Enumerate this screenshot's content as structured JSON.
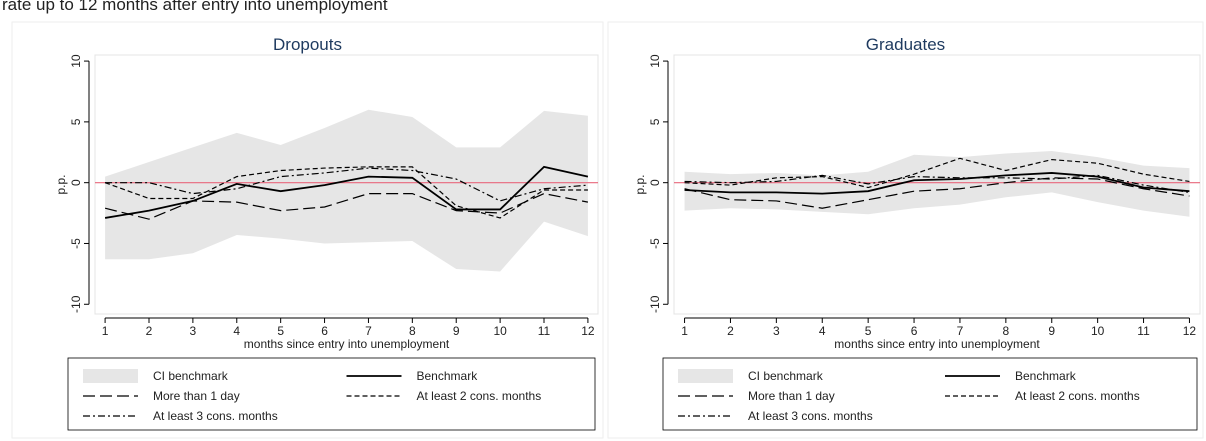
{
  "caption": "rate up to 12 months after entry into unemployment",
  "chart_data": [
    {
      "type": "line",
      "title": "Dropouts",
      "xlabel": "months since entry into unemployment",
      "ylabel": "p.p.",
      "x": [
        1,
        2,
        3,
        4,
        5,
        6,
        7,
        8,
        9,
        10,
        11,
        12
      ],
      "xticks": [
        1,
        2,
        3,
        4,
        5,
        6,
        7,
        8,
        9,
        10,
        11,
        12
      ],
      "xlim": [
        0.77,
        12.23
      ],
      "ylim": [
        -10.8,
        10.5
      ],
      "yticks": [
        -10,
        -5,
        0,
        5,
        10
      ],
      "refline": {
        "value": 0,
        "color": "#e8687c"
      },
      "band": {
        "name": "CI benchmark",
        "color": "#e6e6e6",
        "lower": [
          -6.3,
          -6.3,
          -5.8,
          -4.3,
          -4.6,
          -5.0,
          -4.9,
          -4.8,
          -7.1,
          -7.3,
          -3.2,
          -4.4
        ],
        "upper": [
          0.5,
          1.7,
          2.9,
          4.1,
          3.1,
          4.5,
          6.0,
          5.4,
          2.9,
          2.9,
          5.9,
          5.5
        ]
      },
      "series": [
        {
          "name": "Benchmark",
          "color": "#000000",
          "style": "solid",
          "values": [
            -2.9,
            -2.3,
            -1.5,
            -0.1,
            -0.7,
            -0.2,
            0.5,
            0.4,
            -2.2,
            -2.2,
            1.3,
            0.5
          ]
        },
        {
          "name": "More than 1 day",
          "color": "#000000",
          "style": "longdash",
          "values": [
            -2.1,
            -3.0,
            -1.5,
            -1.6,
            -2.3,
            -2.0,
            -0.9,
            -0.9,
            -2.3,
            -2.5,
            -0.9,
            -1.6
          ]
        },
        {
          "name": "At least 2 cons. months",
          "color": "#000000",
          "style": "dash",
          "values": [
            0,
            -1.3,
            -1.3,
            0.5,
            1.0,
            1.2,
            1.3,
            1.3,
            -1.9,
            -2.9,
            -0.6,
            -0.6
          ]
        },
        {
          "name": "At least 3 cons. months",
          "color": "#000000",
          "style": "dashdot",
          "values": [
            0,
            0,
            -0.9,
            -0.5,
            0.5,
            0.8,
            1.2,
            1.0,
            0.3,
            -1.5,
            -0.5,
            -0.2
          ]
        }
      ]
    },
    {
      "type": "line",
      "title": "Graduates",
      "xlabel": "months since entry into unemployment",
      "ylabel": "p.p.",
      "x": [
        1,
        2,
        3,
        4,
        5,
        6,
        7,
        8,
        9,
        10,
        11,
        12
      ],
      "xticks": [
        1,
        2,
        3,
        4,
        5,
        6,
        7,
        8,
        9,
        10,
        11,
        12
      ],
      "xlim": [
        0.77,
        12.23
      ],
      "ylim": [
        -10.8,
        10.5
      ],
      "yticks": [
        -10,
        -5,
        0,
        5,
        10
      ],
      "refline": {
        "value": 0,
        "color": "#e8687c"
      },
      "band": {
        "name": "CI benchmark",
        "color": "#e6e6e6",
        "lower": [
          -2.3,
          -2.1,
          -2.2,
          -2.4,
          -2.6,
          -2.1,
          -1.8,
          -1.2,
          -0.8,
          -1.6,
          -2.3,
          -2.8
        ],
        "upper": [
          0.9,
          0.7,
          0.8,
          0.6,
          0.9,
          2.3,
          2.1,
          2.4,
          2.6,
          2.1,
          1.4,
          1.2
        ]
      },
      "series": [
        {
          "name": "Benchmark",
          "color": "#000000",
          "style": "solid",
          "values": [
            -0.6,
            -0.8,
            -0.8,
            -0.9,
            -0.7,
            0.2,
            0.3,
            0.6,
            0.8,
            0.5,
            -0.4,
            -0.7
          ]
        },
        {
          "name": "More than 1 day",
          "color": "#000000",
          "style": "longdash",
          "values": [
            -0.5,
            -1.4,
            -1.5,
            -2.1,
            -1.4,
            -0.7,
            -0.5,
            0.0,
            0.4,
            0.3,
            -0.5,
            -1.1
          ]
        },
        {
          "name": "At least 2 cons. months",
          "color": "#000000",
          "style": "dash",
          "values": [
            0,
            -0.2,
            0.4,
            0.5,
            -0.4,
            0.7,
            2.0,
            1.0,
            1.9,
            1.6,
            0.7,
            0.1
          ]
        },
        {
          "name": "At least 3 cons. months",
          "color": "#000000",
          "style": "dashdot",
          "values": [
            0.1,
            0,
            0.1,
            0.6,
            -0.1,
            0.5,
            0.4,
            0.4,
            0.3,
            0.6,
            -0.2,
            -0.8
          ]
        }
      ]
    }
  ]
}
